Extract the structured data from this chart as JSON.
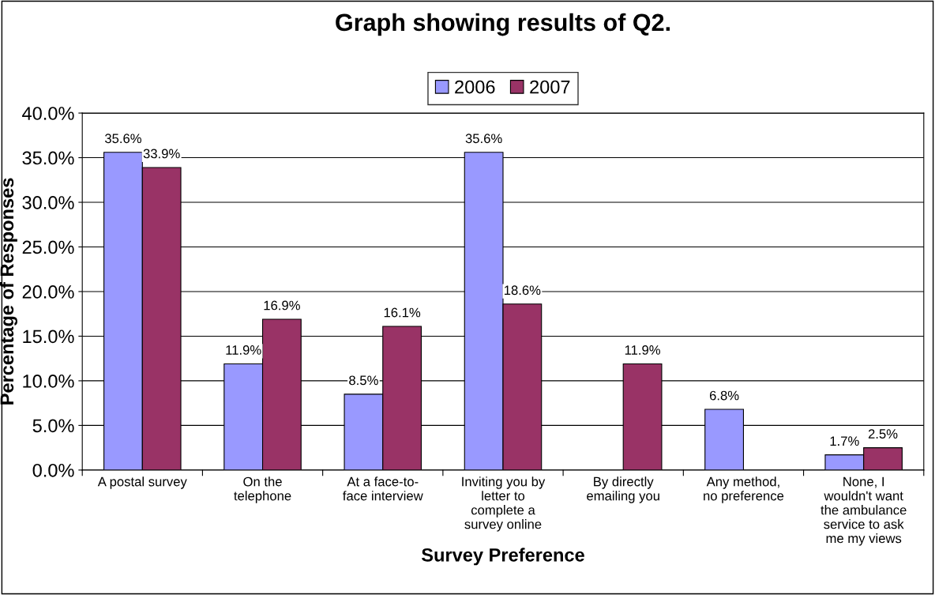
{
  "chart_data": {
    "type": "bar",
    "title": "Graph showing results of Q2.",
    "xlabel": "Survey Preference",
    "ylabel": "Percentage of Responses",
    "categories": [
      "A postal survey",
      "On the\ntelephone",
      "At a face-to-\nface interview",
      "Inviting you by\nletter to\ncomplete a\nsurvey online",
      "By directly\nemailing you",
      "Any method,\nno preference",
      "None, I\nwouldn't want\nthe ambulance\nservice to ask\nme my views"
    ],
    "series": [
      {
        "name": "2006",
        "color": "#9999ff",
        "values": [
          35.6,
          11.9,
          8.5,
          35.6,
          null,
          6.8,
          1.7
        ],
        "value_labels": [
          "35.6%",
          "11.9%",
          "8.5%",
          "35.6%",
          null,
          "6.8%",
          "1.7%"
        ]
      },
      {
        "name": "2007",
        "color": "#993366",
        "values": [
          33.9,
          16.9,
          16.1,
          18.6,
          11.9,
          null,
          2.5
        ],
        "value_labels": [
          "33.9%",
          "16.9%",
          "16.1%",
          "18.6%",
          "11.9%",
          null,
          "2.5%"
        ]
      }
    ],
    "ylim": [
      0,
      40
    ],
    "yticks": [
      {
        "value": 0,
        "label": "0.0%"
      },
      {
        "value": 5,
        "label": "5.0%"
      },
      {
        "value": 10,
        "label": "10.0%"
      },
      {
        "value": 15,
        "label": "15.0%"
      },
      {
        "value": 20,
        "label": "20.0%"
      },
      {
        "value": 25,
        "label": "25.0%"
      },
      {
        "value": 30,
        "label": "30.0%"
      },
      {
        "value": 35,
        "label": "35.0%"
      },
      {
        "value": 40,
        "label": "40.0%"
      }
    ],
    "grid": "y",
    "legend": "top"
  }
}
